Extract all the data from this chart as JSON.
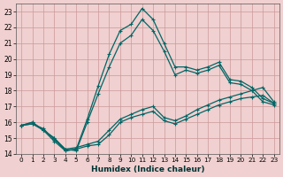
{
  "title": "",
  "xlabel": "Humidex (Indice chaleur)",
  "bg_color": "#f0d0d0",
  "grid_color": "#cc9999",
  "line_color": "#006666",
  "xlim": [
    -0.5,
    23.5
  ],
  "ylim": [
    14,
    23.5
  ],
  "xticks": [
    0,
    1,
    2,
    3,
    4,
    5,
    6,
    7,
    8,
    9,
    10,
    11,
    12,
    13,
    14,
    15,
    16,
    17,
    18,
    19,
    20,
    21,
    22,
    23
  ],
  "yticks": [
    14,
    15,
    16,
    17,
    18,
    19,
    20,
    21,
    22,
    23
  ],
  "line_peak1_x": [
    0,
    1,
    2,
    3,
    4,
    5,
    6,
    7,
    8,
    9,
    10,
    11,
    12,
    13,
    14,
    15,
    16,
    17,
    18,
    19,
    20,
    21,
    22,
    23
  ],
  "line_peak1_y": [
    15.8,
    16.0,
    15.5,
    15.0,
    14.2,
    14.3,
    16.2,
    18.3,
    20.3,
    21.8,
    22.2,
    23.2,
    22.5,
    21.0,
    19.5,
    19.5,
    19.3,
    19.5,
    19.8,
    18.7,
    18.6,
    18.2,
    17.5,
    17.2
  ],
  "line_peak2_x": [
    0,
    1,
    2,
    3,
    4,
    5,
    6,
    7,
    8,
    9,
    10,
    11,
    12,
    13,
    14,
    15,
    16,
    17,
    18,
    19,
    20,
    21,
    22,
    23
  ],
  "line_peak2_y": [
    15.8,
    16.0,
    15.5,
    15.0,
    14.3,
    14.2,
    16.0,
    17.8,
    19.5,
    21.0,
    21.5,
    22.5,
    21.8,
    20.5,
    19.0,
    19.3,
    19.1,
    19.3,
    19.6,
    18.5,
    18.4,
    18.0,
    17.3,
    17.1
  ],
  "line_flat1_x": [
    0,
    1,
    2,
    3,
    4,
    5,
    6,
    7,
    8,
    9,
    10,
    11,
    12,
    13,
    14,
    15,
    16,
    17,
    18,
    19,
    20,
    21,
    22,
    23
  ],
  "line_flat1_y": [
    15.8,
    15.9,
    15.5,
    14.8,
    14.2,
    14.3,
    14.5,
    14.6,
    15.2,
    16.0,
    16.3,
    16.5,
    16.7,
    16.1,
    15.9,
    16.2,
    16.5,
    16.8,
    17.1,
    17.3,
    17.5,
    17.6,
    17.7,
    17.2
  ],
  "line_flat2_x": [
    0,
    1,
    2,
    3,
    4,
    5,
    6,
    7,
    8,
    9,
    10,
    11,
    12,
    13,
    14,
    15,
    16,
    17,
    18,
    19,
    20,
    21,
    22,
    23
  ],
  "line_flat2_y": [
    15.8,
    15.9,
    15.6,
    14.9,
    14.3,
    14.4,
    14.6,
    14.8,
    15.5,
    16.2,
    16.5,
    16.8,
    17.0,
    16.3,
    16.1,
    16.4,
    16.8,
    17.1,
    17.4,
    17.6,
    17.8,
    18.0,
    18.2,
    17.3
  ]
}
